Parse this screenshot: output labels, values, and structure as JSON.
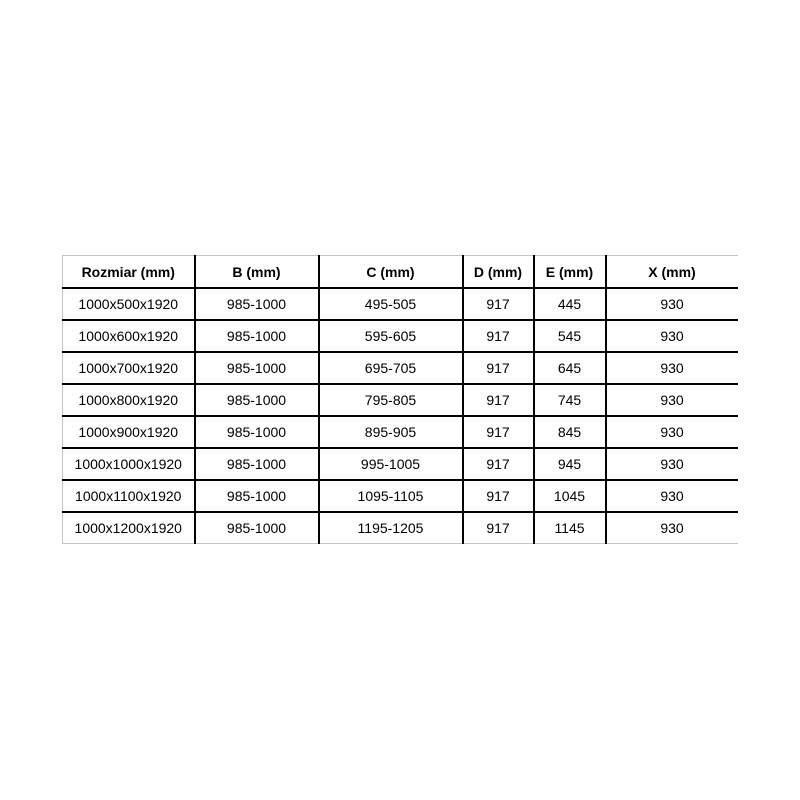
{
  "page": {
    "background": "#ffffff"
  },
  "table": {
    "title": "dimension-spec-table",
    "headers": [
      "Rozmiar (mm)",
      "B (mm)",
      "C (mm)",
      "D (mm)",
      "E (mm)",
      "X (mm)"
    ],
    "rows": [
      [
        "1000x500x1920",
        "985-1000",
        "495-505",
        "917",
        "445",
        "930"
      ],
      [
        "1000x600x1920",
        "985-1000",
        "595-605",
        "917",
        "545",
        "930"
      ],
      [
        "1000x700x1920",
        "985-1000",
        "695-705",
        "917",
        "645",
        "930"
      ],
      [
        "1000x800x1920",
        "985-1000",
        "795-805",
        "917",
        "745",
        "930"
      ],
      [
        "1000x900x1920",
        "985-1000",
        "895-905",
        "917",
        "845",
        "930"
      ],
      [
        "1000x1000x1920",
        "985-1000",
        "995-1005",
        "917",
        "945",
        "930"
      ],
      [
        "1000x1100x1920",
        "985-1000",
        "1095-1105",
        "917",
        "1045",
        "930"
      ],
      [
        "1000x1200x1920",
        "985-1000",
        "1195-1205",
        "917",
        "1145",
        "930"
      ]
    ],
    "colors": {
      "text": "#000000",
      "inner_border": "#000000",
      "outer_border": "#c6c6c6",
      "cell_background": "#ffffff"
    }
  }
}
